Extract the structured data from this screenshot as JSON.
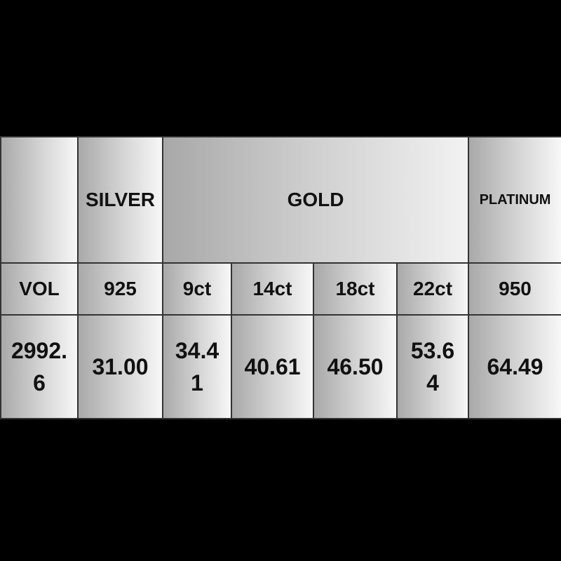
{
  "header": {
    "blank": "",
    "silver": "SILVER",
    "gold": "GOLD",
    "platinum": "PLATINUM"
  },
  "subheader": [
    "VOL",
    "925",
    "9ct",
    "14ct",
    "18ct",
    "22ct",
    "950"
  ],
  "values": [
    "2992.6",
    "31.00",
    "34.41",
    "40.61",
    "46.50",
    "53.64",
    "64.49"
  ]
}
